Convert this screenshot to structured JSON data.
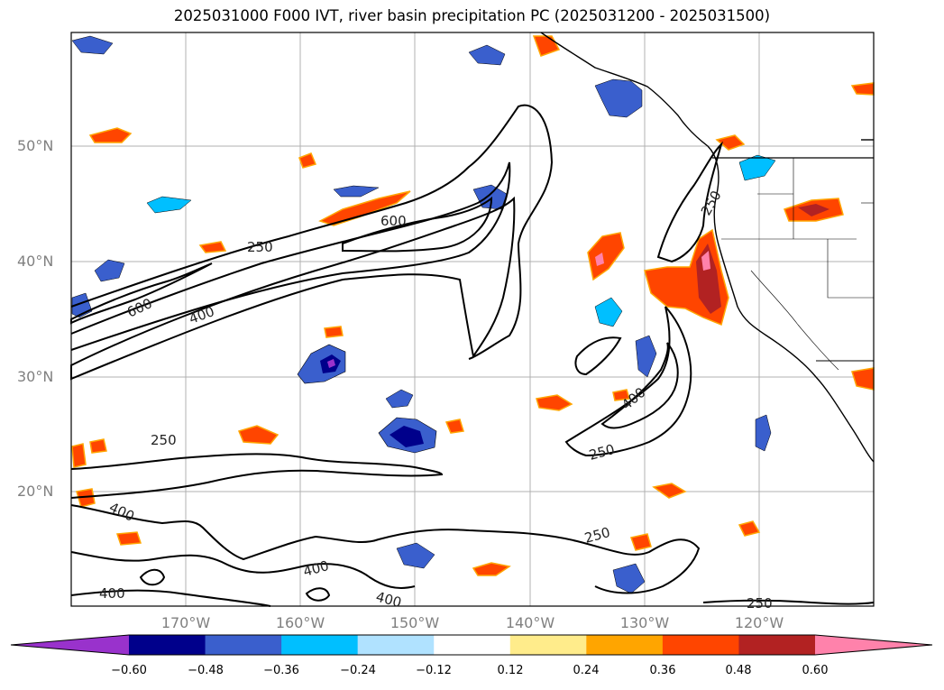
{
  "title": "2025031000 F000 IVT, river basin precipitation PC (2025031200 - 2025031500)",
  "map": {
    "lat_labels": [
      "50°N",
      "40°N",
      "30°N",
      "20°N"
    ],
    "lon_labels": [
      "170°W",
      "160°W",
      "150°W",
      "140°W",
      "130°W",
      "120°W"
    ],
    "ivt_contour_labels": [
      "600",
      "250",
      "600",
      "400",
      "250",
      "400",
      "400",
      "250",
      "250",
      "400",
      "400",
      "250"
    ]
  },
  "colorbar": {
    "ticks": [
      "−0.60",
      "−0.48",
      "−0.36",
      "−0.24",
      "−0.12",
      "0.12",
      "0.24",
      "0.36",
      "0.48",
      "0.60"
    ],
    "colors": [
      "#9932cc",
      "#00008b",
      "#3a5fcd",
      "#00bfff",
      "#b0e2ff",
      "#ffffff",
      "#ffec8b",
      "#ffa500",
      "#ff4500",
      "#b22222",
      "#ff82ab"
    ]
  }
}
